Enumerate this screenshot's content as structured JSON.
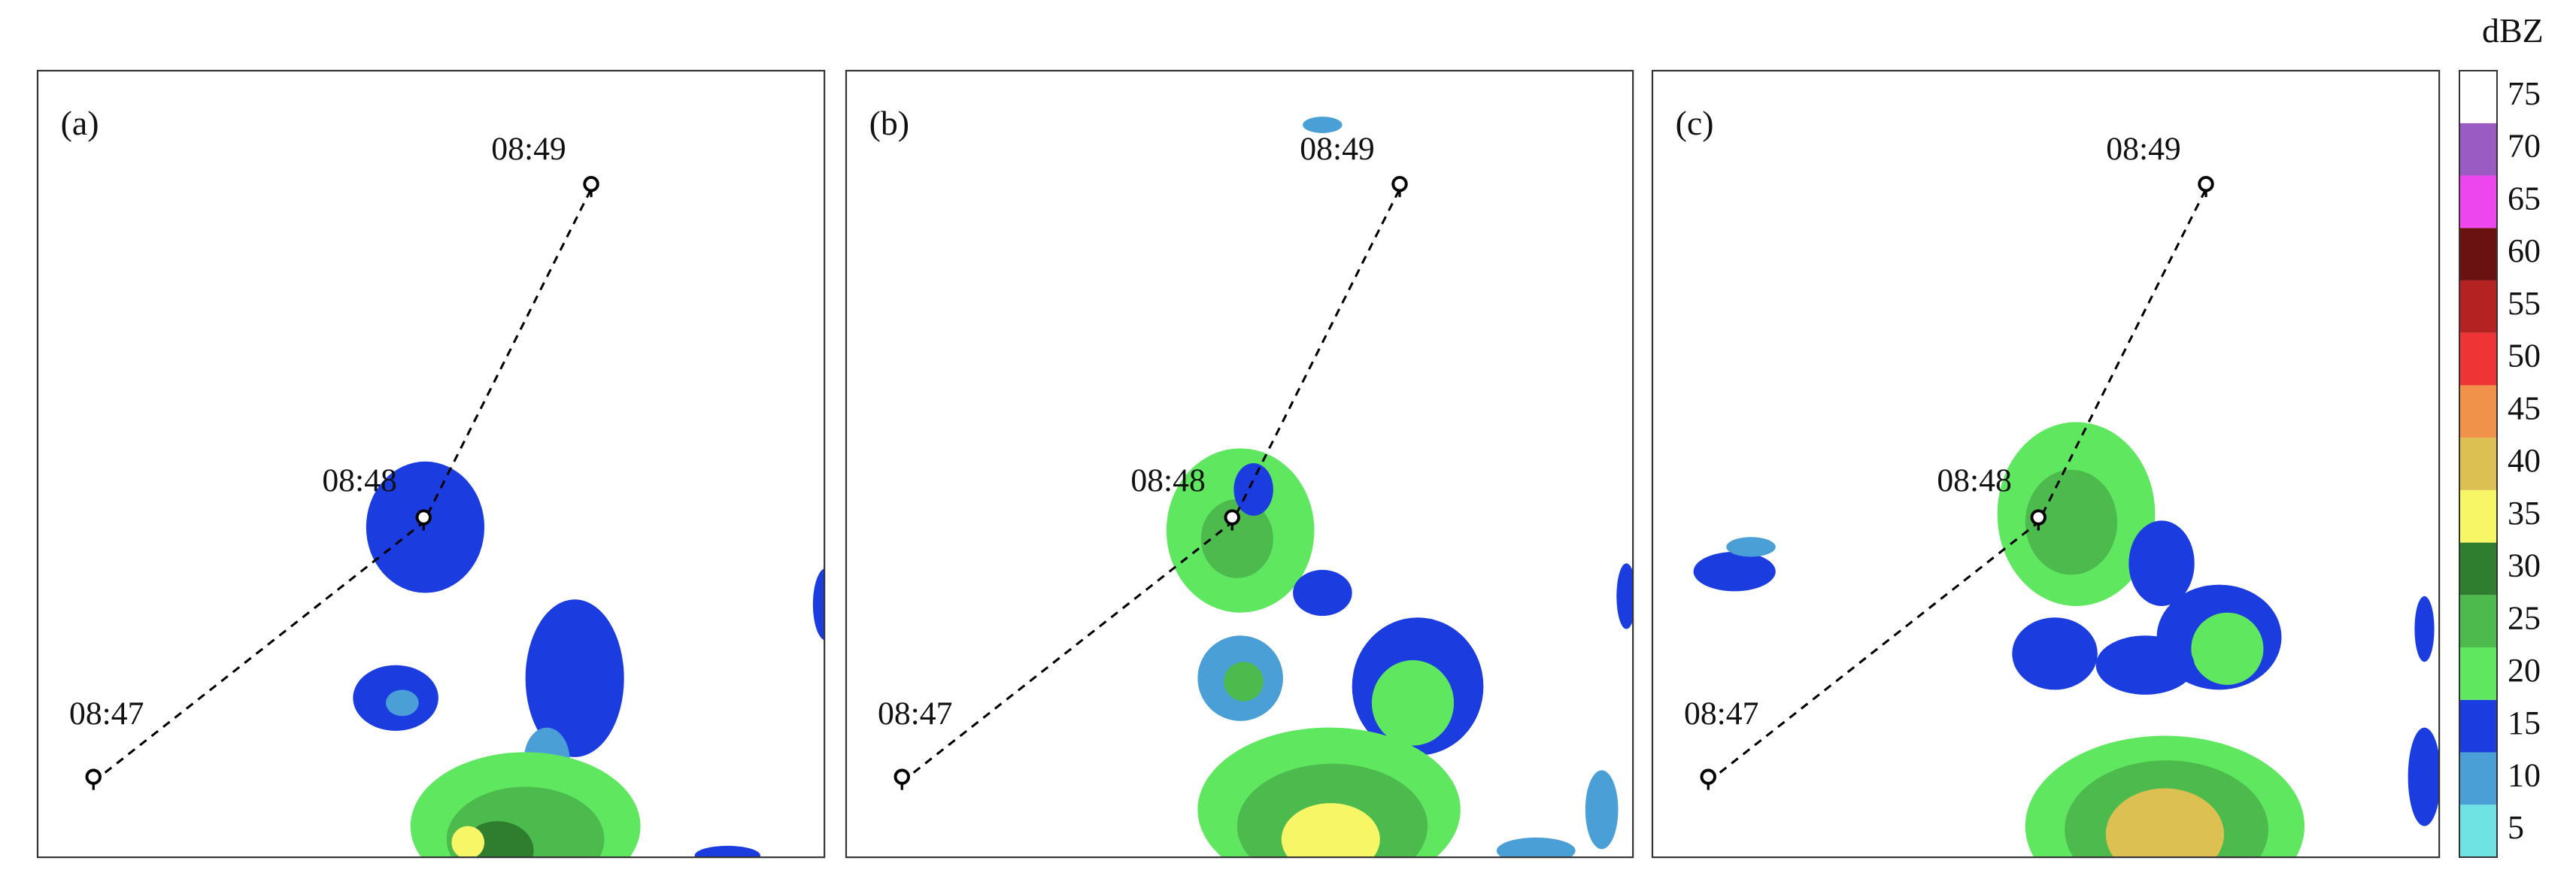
{
  "panels": [
    {
      "label": "(a)",
      "times": [
        "08:47",
        "08:48",
        "08:49"
      ]
    },
    {
      "label": "(b)",
      "times": [
        "08:47",
        "08:48",
        "08:49"
      ]
    },
    {
      "label": "(c)",
      "times": [
        "08:47",
        "08:48",
        "08:49"
      ]
    }
  ],
  "colorbar": {
    "unit": "dBZ",
    "ticks": [
      5,
      10,
      15,
      20,
      25,
      30,
      35,
      40,
      45,
      50,
      55,
      60,
      65,
      70,
      75
    ],
    "colors": [
      "#6fe3e3",
      "#4a9fd6",
      "#1b3de0",
      "#5fe85f",
      "#4cba4c",
      "#2f7d2f",
      "#f6f666",
      "#dcc052",
      "#f0924a",
      "#ee3434",
      "#b52222",
      "#6a1212",
      "#ee46ee",
      "#9a5cc2",
      "#ffffff"
    ]
  }
}
